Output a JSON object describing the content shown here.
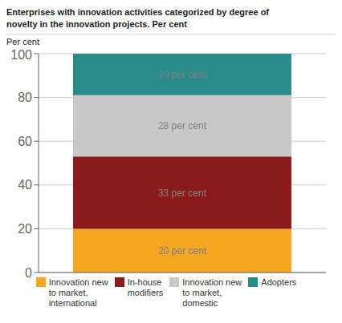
{
  "chart_data": {
    "type": "bar",
    "title": "Enterprises with innovation activities categorized by degree of\nnovelty in the innovation projects. Per cent",
    "ylabel": "Per cent",
    "categories": [
      null
    ],
    "series": [
      {
        "name": "Innovation new\nto market,\ninternational",
        "color": "#F5A623",
        "values": [
          20
        ],
        "value_labels": [
          "20 per cent"
        ]
      },
      {
        "name": "In-house\nmodifiers",
        "color": "#8B1A1A",
        "values": [
          33
        ],
        "value_labels": [
          "33 per cent"
        ]
      },
      {
        "name": "Innovation new\nto market,\ndomestic",
        "color": "#C8C8C8",
        "values": [
          28
        ],
        "value_labels": [
          "28 per cent"
        ]
      },
      {
        "name": "Adopters",
        "color": "#2A8B8B",
        "values": [
          19
        ],
        "value_labels": [
          "19 per cent"
        ]
      }
    ],
    "stacked": true,
    "data_labels": true,
    "ylim": [
      0,
      100
    ],
    "yticks": [
      0,
      20,
      40,
      60,
      80,
      100
    ],
    "grid": true,
    "legend": "bottom",
    "tick_labels": "y"
  }
}
